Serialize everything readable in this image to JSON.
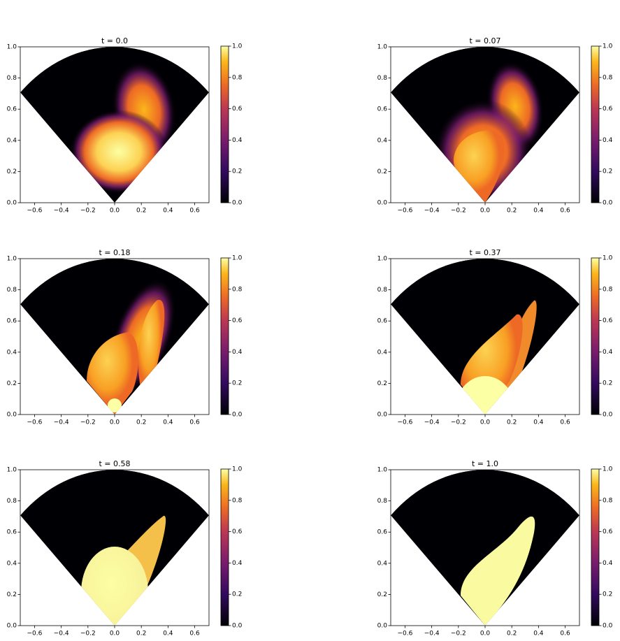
{
  "chart_data": [
    {
      "type": "heatmap",
      "title": "t = 0.0",
      "colormap": "inferno",
      "xlim": [
        -0.7071,
        0.7071
      ],
      "ylim": [
        0,
        1
      ],
      "xticks": [
        {
          "value": -0.6,
          "label": "−0.6"
        },
        {
          "value": -0.4,
          "label": "−0.4"
        },
        {
          "value": -0.2,
          "label": "−0.2"
        },
        {
          "value": 0,
          "label": "0.0"
        },
        {
          "value": 0.2,
          "label": "0.2"
        },
        {
          "value": 0.4,
          "label": "0.4"
        },
        {
          "value": 0.6,
          "label": "0.6"
        }
      ],
      "yticks": [
        {
          "value": 0,
          "label": "0.0"
        },
        {
          "value": 0.2,
          "label": "0.2"
        },
        {
          "value": 0.4,
          "label": "0.4"
        },
        {
          "value": 0.6,
          "label": "0.6"
        },
        {
          "value": 0.8,
          "label": "0.8"
        },
        {
          "value": 1,
          "label": "1.0"
        }
      ],
      "colorbar": {
        "lim": [
          0,
          1
        ],
        "ticks": [
          {
            "value": 0,
            "label": "0.0"
          },
          {
            "value": 0.2,
            "label": "0.2"
          },
          {
            "value": 0.4,
            "label": "0.4"
          },
          {
            "value": 0.6,
            "label": "0.6"
          },
          {
            "value": 0.8,
            "label": "0.8"
          },
          {
            "value": 1,
            "label": "1.0"
          }
        ]
      }
    },
    {
      "type": "heatmap",
      "title": "t = 0.07",
      "colormap": "inferno",
      "xlim": [
        -0.7071,
        0.7071
      ],
      "ylim": [
        0,
        1
      ],
      "xticks": [
        {
          "value": -0.6,
          "label": "−0.6"
        },
        {
          "value": -0.4,
          "label": "−0.4"
        },
        {
          "value": -0.2,
          "label": "−0.2"
        },
        {
          "value": 0,
          "label": "0.0"
        },
        {
          "value": 0.2,
          "label": "0.2"
        },
        {
          "value": 0.4,
          "label": "0.4"
        },
        {
          "value": 0.6,
          "label": "0.6"
        }
      ],
      "yticks": [
        {
          "value": 0,
          "label": "0.0"
        },
        {
          "value": 0.2,
          "label": "0.2"
        },
        {
          "value": 0.4,
          "label": "0.4"
        },
        {
          "value": 0.6,
          "label": "0.6"
        },
        {
          "value": 0.8,
          "label": "0.8"
        },
        {
          "value": 1,
          "label": "1.0"
        }
      ],
      "colorbar": {
        "lim": [
          0,
          1
        ],
        "ticks": [
          {
            "value": 0,
            "label": "0.0"
          },
          {
            "value": 0.2,
            "label": "0.2"
          },
          {
            "value": 0.4,
            "label": "0.4"
          },
          {
            "value": 0.6,
            "label": "0.6"
          },
          {
            "value": 0.8,
            "label": "0.8"
          },
          {
            "value": 1,
            "label": "1.0"
          }
        ]
      }
    },
    {
      "type": "heatmap",
      "title": "t = 0.18",
      "colormap": "inferno",
      "xlim": [
        -0.7071,
        0.7071
      ],
      "ylim": [
        0,
        1
      ],
      "xticks": [
        {
          "value": -0.6,
          "label": "−0.6"
        },
        {
          "value": -0.4,
          "label": "−0.4"
        },
        {
          "value": -0.2,
          "label": "−0.2"
        },
        {
          "value": 0,
          "label": "0.0"
        },
        {
          "value": 0.2,
          "label": "0.2"
        },
        {
          "value": 0.4,
          "label": "0.4"
        },
        {
          "value": 0.6,
          "label": "0.6"
        }
      ],
      "yticks": [
        {
          "value": 0,
          "label": "0.0"
        },
        {
          "value": 0.2,
          "label": "0.2"
        },
        {
          "value": 0.4,
          "label": "0.4"
        },
        {
          "value": 0.6,
          "label": "0.6"
        },
        {
          "value": 0.8,
          "label": "0.8"
        },
        {
          "value": 1,
          "label": "1.0"
        }
      ],
      "colorbar": {
        "lim": [
          0,
          1
        ],
        "ticks": [
          {
            "value": 0,
            "label": "0.0"
          },
          {
            "value": 0.2,
            "label": "0.2"
          },
          {
            "value": 0.4,
            "label": "0.4"
          },
          {
            "value": 0.6,
            "label": "0.6"
          },
          {
            "value": 0.8,
            "label": "0.8"
          },
          {
            "value": 1,
            "label": "1.0"
          }
        ]
      }
    },
    {
      "type": "heatmap",
      "title": "t = 0.37",
      "colormap": "inferno",
      "xlim": [
        -0.7071,
        0.7071
      ],
      "ylim": [
        0,
        1
      ],
      "xticks": [
        {
          "value": -0.6,
          "label": "−0.6"
        },
        {
          "value": -0.4,
          "label": "−0.4"
        },
        {
          "value": -0.2,
          "label": "−0.2"
        },
        {
          "value": 0,
          "label": "0.0"
        },
        {
          "value": 0.2,
          "label": "0.2"
        },
        {
          "value": 0.4,
          "label": "0.4"
        },
        {
          "value": 0.6,
          "label": "0.6"
        }
      ],
      "yticks": [
        {
          "value": 0,
          "label": "0.0"
        },
        {
          "value": 0.2,
          "label": "0.2"
        },
        {
          "value": 0.4,
          "label": "0.4"
        },
        {
          "value": 0.6,
          "label": "0.6"
        },
        {
          "value": 0.8,
          "label": "0.8"
        },
        {
          "value": 1,
          "label": "1.0"
        }
      ],
      "colorbar": {
        "lim": [
          0,
          1
        ],
        "ticks": [
          {
            "value": 0,
            "label": "0.0"
          },
          {
            "value": 0.2,
            "label": "0.2"
          },
          {
            "value": 0.4,
            "label": "0.4"
          },
          {
            "value": 0.6,
            "label": "0.6"
          },
          {
            "value": 0.8,
            "label": "0.8"
          },
          {
            "value": 1,
            "label": "1.0"
          }
        ]
      }
    },
    {
      "type": "heatmap",
      "title": "t = 0.58",
      "colormap": "inferno",
      "xlim": [
        -0.7071,
        0.7071
      ],
      "ylim": [
        0,
        1
      ],
      "xticks": [
        {
          "value": -0.6,
          "label": "−0.6"
        },
        {
          "value": -0.4,
          "label": "−0.4"
        },
        {
          "value": -0.2,
          "label": "−0.2"
        },
        {
          "value": 0,
          "label": "0.0"
        },
        {
          "value": 0.2,
          "label": "0.2"
        },
        {
          "value": 0.4,
          "label": "0.4"
        },
        {
          "value": 0.6,
          "label": "0.6"
        }
      ],
      "yticks": [
        {
          "value": 0,
          "label": "0.0"
        },
        {
          "value": 0.2,
          "label": "0.2"
        },
        {
          "value": 0.4,
          "label": "0.4"
        },
        {
          "value": 0.6,
          "label": "0.6"
        },
        {
          "value": 0.8,
          "label": "0.8"
        },
        {
          "value": 1,
          "label": "1.0"
        }
      ],
      "colorbar": {
        "lim": [
          0,
          1
        ],
        "ticks": [
          {
            "value": 0,
            "label": "0.0"
          },
          {
            "value": 0.2,
            "label": "0.2"
          },
          {
            "value": 0.4,
            "label": "0.4"
          },
          {
            "value": 0.6,
            "label": "0.6"
          },
          {
            "value": 0.8,
            "label": "0.8"
          },
          {
            "value": 1,
            "label": "1.0"
          }
        ]
      }
    },
    {
      "type": "heatmap",
      "title": "t = 1.0",
      "colormap": "inferno",
      "xlim": [
        -0.7071,
        0.7071
      ],
      "ylim": [
        0,
        1
      ],
      "xticks": [
        {
          "value": -0.6,
          "label": "−0.6"
        },
        {
          "value": -0.4,
          "label": "−0.4"
        },
        {
          "value": -0.2,
          "label": "−0.2"
        },
        {
          "value": 0,
          "label": "0.0"
        },
        {
          "value": 0.2,
          "label": "0.2"
        },
        {
          "value": 0.4,
          "label": "0.4"
        },
        {
          "value": 0.6,
          "label": "0.6"
        }
      ],
      "yticks": [
        {
          "value": 0,
          "label": "0.0"
        },
        {
          "value": 0.2,
          "label": "0.2"
        },
        {
          "value": 0.4,
          "label": "0.4"
        },
        {
          "value": 0.6,
          "label": "0.6"
        },
        {
          "value": 0.8,
          "label": "0.8"
        },
        {
          "value": 1,
          "label": "1.0"
        }
      ],
      "colorbar": {
        "lim": [
          0,
          1
        ],
        "ticks": [
          {
            "value": 0,
            "label": "0.0"
          },
          {
            "value": 0.2,
            "label": "0.2"
          },
          {
            "value": 0.4,
            "label": "0.4"
          },
          {
            "value": 0.6,
            "label": "0.6"
          },
          {
            "value": 0.8,
            "label": "0.8"
          },
          {
            "value": 1,
            "label": "1.0"
          }
        ]
      }
    }
  ]
}
